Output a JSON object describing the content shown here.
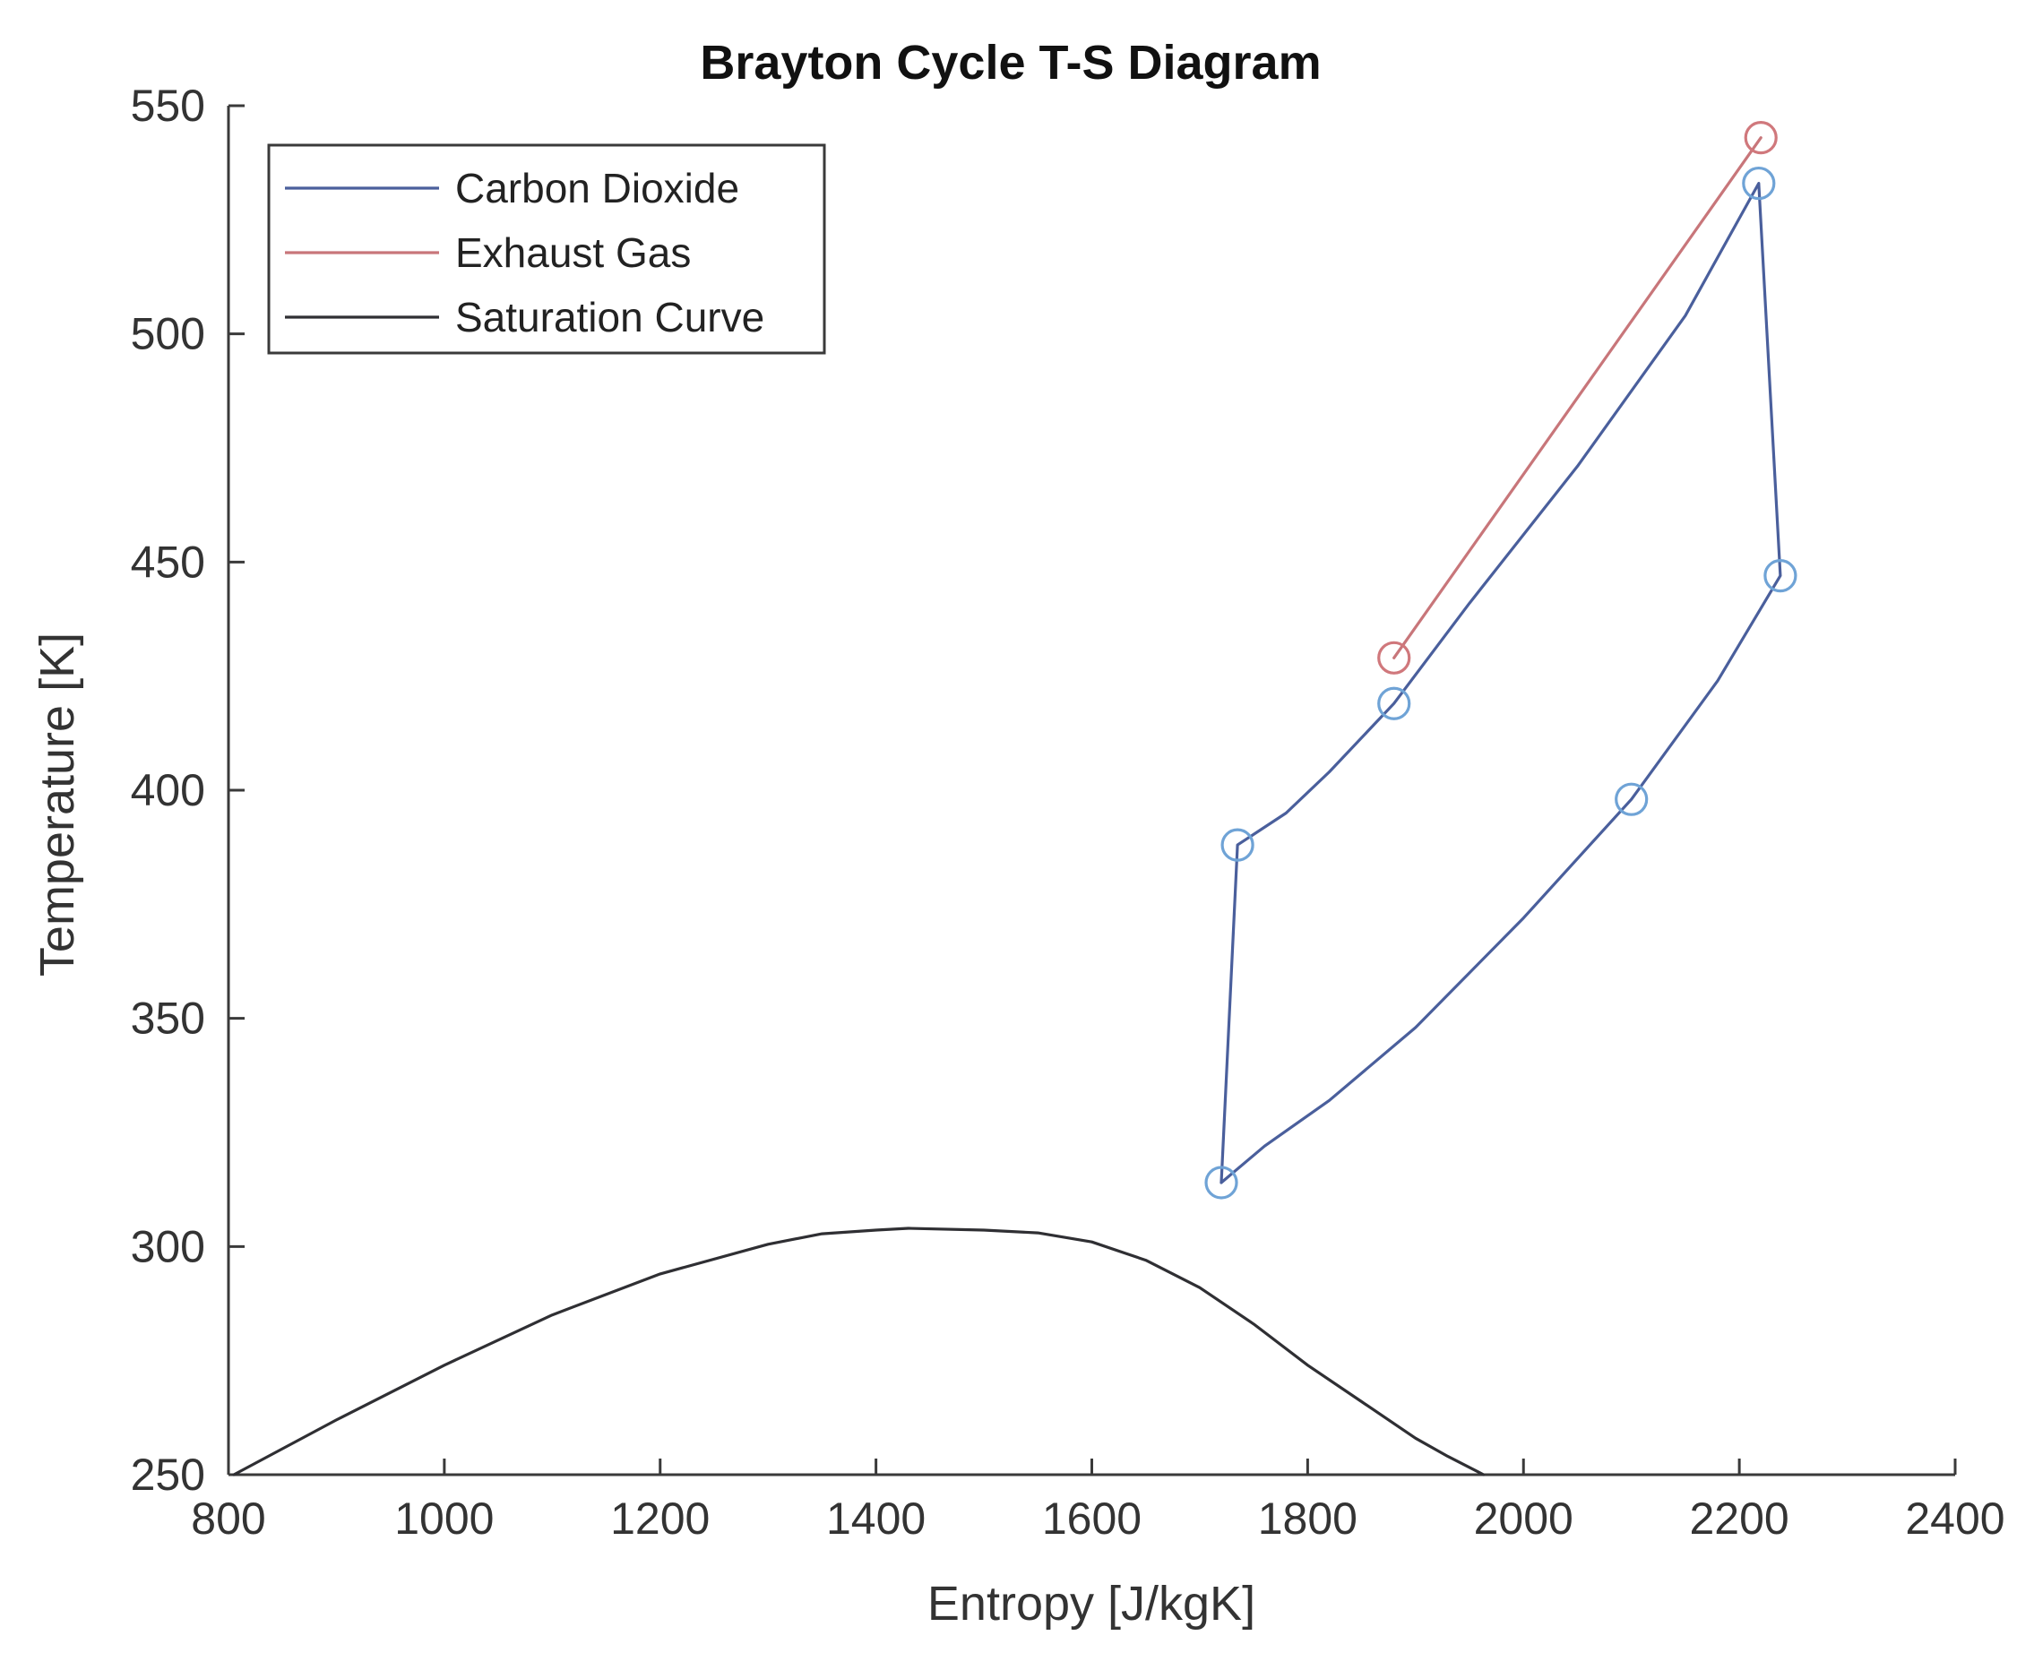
{
  "chart_data": {
    "type": "line",
    "title": "Brayton Cycle T-S Diagram",
    "xlabel": "Entropy [J/kgK]",
    "ylabel": "Temperature [K]",
    "xlim": [
      800,
      2400
    ],
    "ylim": [
      250,
      550
    ],
    "xticks": [
      800,
      1000,
      1200,
      1400,
      1600,
      1800,
      2000,
      2200,
      2400
    ],
    "yticks": [
      250,
      300,
      350,
      400,
      450,
      500,
      550
    ],
    "grid": false,
    "legend_position": "top-left",
    "series": [
      {
        "name": "Carbon Dioxide",
        "color": "#4a5f9c",
        "marker_color": "#6fa3d6",
        "x": [
          1720,
          1760,
          1820,
          1900,
          2000,
          2100,
          2180,
          2238,
          2218,
          2150,
          2050,
          1950,
          1880,
          1820,
          1780,
          1735,
          1720
        ],
        "y": [
          314,
          322,
          332,
          348,
          372,
          398,
          424,
          447,
          533,
          504,
          471,
          441,
          419,
          404,
          395,
          388,
          314
        ],
        "markers": [
          {
            "x": 1720,
            "y": 314
          },
          {
            "x": 2100,
            "y": 398
          },
          {
            "x": 2238,
            "y": 447
          },
          {
            "x": 2218,
            "y": 533
          },
          {
            "x": 1880,
            "y": 419
          },
          {
            "x": 1735,
            "y": 388
          }
        ]
      },
      {
        "name": "Exhaust Gas",
        "color": "#c8767a",
        "marker_color": "#d0787c",
        "x": [
          1880,
          2220
        ],
        "y": [
          429,
          543
        ],
        "markers": [
          {
            "x": 1880,
            "y": 429
          },
          {
            "x": 2220,
            "y": 543
          }
        ]
      },
      {
        "name": "Saturation Curve",
        "color": "#2f2f33",
        "x": [
          805,
          900,
          1000,
          1100,
          1200,
          1300,
          1350,
          1400,
          1430,
          1500,
          1550,
          1600,
          1650,
          1700,
          1750,
          1800,
          1850,
          1900,
          1930,
          1963
        ],
        "y": [
          250,
          262,
          274,
          285,
          294,
          300.5,
          302.8,
          303.6,
          304,
          303.6,
          303,
          301,
          297,
          291,
          283,
          274,
          266,
          258,
          254,
          250
        ],
        "markers": []
      }
    ]
  }
}
